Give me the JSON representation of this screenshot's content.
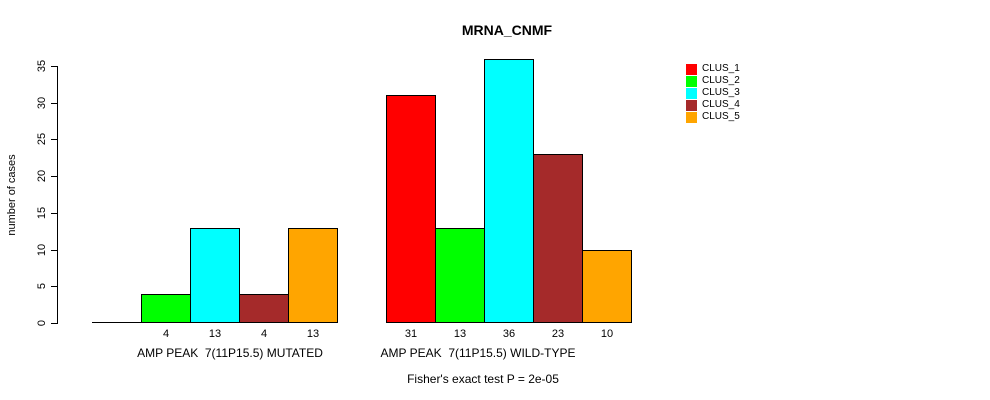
{
  "title": "MRNA_CNMF",
  "footnote": "Fisher's exact test P = 2e-05",
  "chart_data": {
    "type": "bar",
    "title": "MRNA_CNMF",
    "ylabel": "number of cases",
    "xlabel": "",
    "ylim": [
      0,
      35
    ],
    "yticks": [
      0,
      5,
      10,
      15,
      20,
      25,
      30,
      35
    ],
    "grid": false,
    "legend_position": "top-right-outside",
    "categories": [
      "AMP PEAK  7(11P15.5) MUTATED",
      "AMP PEAK  7(11P15.5) WILD-TYPE"
    ],
    "series": [
      {
        "name": "CLUS_1",
        "color": "#FF0000",
        "values": [
          0,
          31
        ]
      },
      {
        "name": "CLUS_2",
        "color": "#00FF00",
        "values": [
          4,
          13
        ]
      },
      {
        "name": "CLUS_3",
        "color": "#00FFFF",
        "values": [
          13,
          36
        ]
      },
      {
        "name": "CLUS_4",
        "color": "#A52A2A",
        "values": [
          4,
          23
        ]
      },
      {
        "name": "CLUS_5",
        "color": "#FFA500",
        "values": [
          13,
          10
        ]
      }
    ],
    "bar_value_labels": {
      "group_1": [
        null,
        4,
        13,
        4,
        13
      ],
      "group_2": [
        31,
        13,
        36,
        23,
        10
      ]
    },
    "annotation": "Fisher's exact test P = 2e-05"
  }
}
